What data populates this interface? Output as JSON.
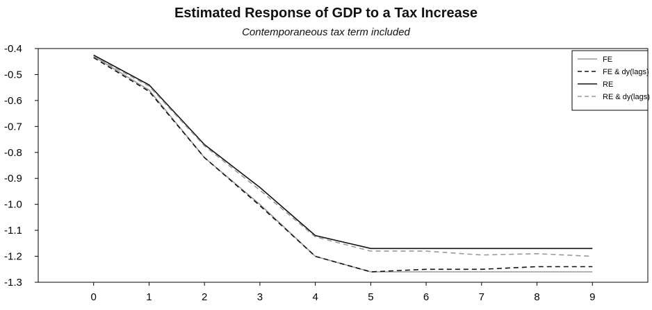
{
  "chart_data": {
    "type": "line",
    "title": "Estimated Response of GDP to a Tax Increase",
    "subtitle": "Contemporaneous tax term included",
    "xlabel": "",
    "ylabel": "",
    "x": [
      0,
      1,
      2,
      3,
      4,
      5,
      6,
      7,
      8,
      9
    ],
    "x_tick_labels": [
      "0",
      "1",
      "2",
      "3",
      "4",
      "5",
      "6",
      "7",
      "8",
      "9"
    ],
    "xlim": [
      -1,
      10
    ],
    "y_tick_labels": [
      "-0.4",
      "-0.5",
      "-0.6",
      "-0.7",
      "-0.8",
      "-0.9",
      "-1.0",
      "-1.1",
      "-1.2",
      "-1.3"
    ],
    "y_ticks": [
      -0.4,
      -0.5,
      -0.6,
      -0.7,
      -0.8,
      -0.9,
      -1.0,
      -1.1,
      -1.2,
      -1.3
    ],
    "ylim": [
      -1.3,
      -0.4
    ],
    "grid": false,
    "legend_position": "top-right",
    "series": [
      {
        "name": "FE",
        "color": "#999999",
        "dash": "solid",
        "values": [
          -0.43,
          -0.56,
          -0.82,
          -1.0,
          -1.2,
          -1.26,
          -1.26,
          -1.26,
          -1.26,
          -1.26
        ]
      },
      {
        "name": "FE & dy(lags)",
        "color": "#111111",
        "dash": "dashed",
        "values": [
          -0.435,
          -0.565,
          -0.82,
          -1.005,
          -1.2,
          -1.26,
          -1.25,
          -1.25,
          -1.24,
          -1.24
        ]
      },
      {
        "name": "RE",
        "color": "#111111",
        "dash": "solid",
        "values": [
          -0.425,
          -0.54,
          -0.77,
          -0.935,
          -1.12,
          -1.17,
          -1.17,
          -1.17,
          -1.17,
          -1.17
        ]
      },
      {
        "name": "RE & dy(lags)",
        "color": "#999999",
        "dash": "dashed",
        "values": [
          -0.43,
          -0.545,
          -0.775,
          -0.945,
          -1.125,
          -1.18,
          -1.18,
          -1.195,
          -1.19,
          -1.2
        ]
      }
    ]
  }
}
